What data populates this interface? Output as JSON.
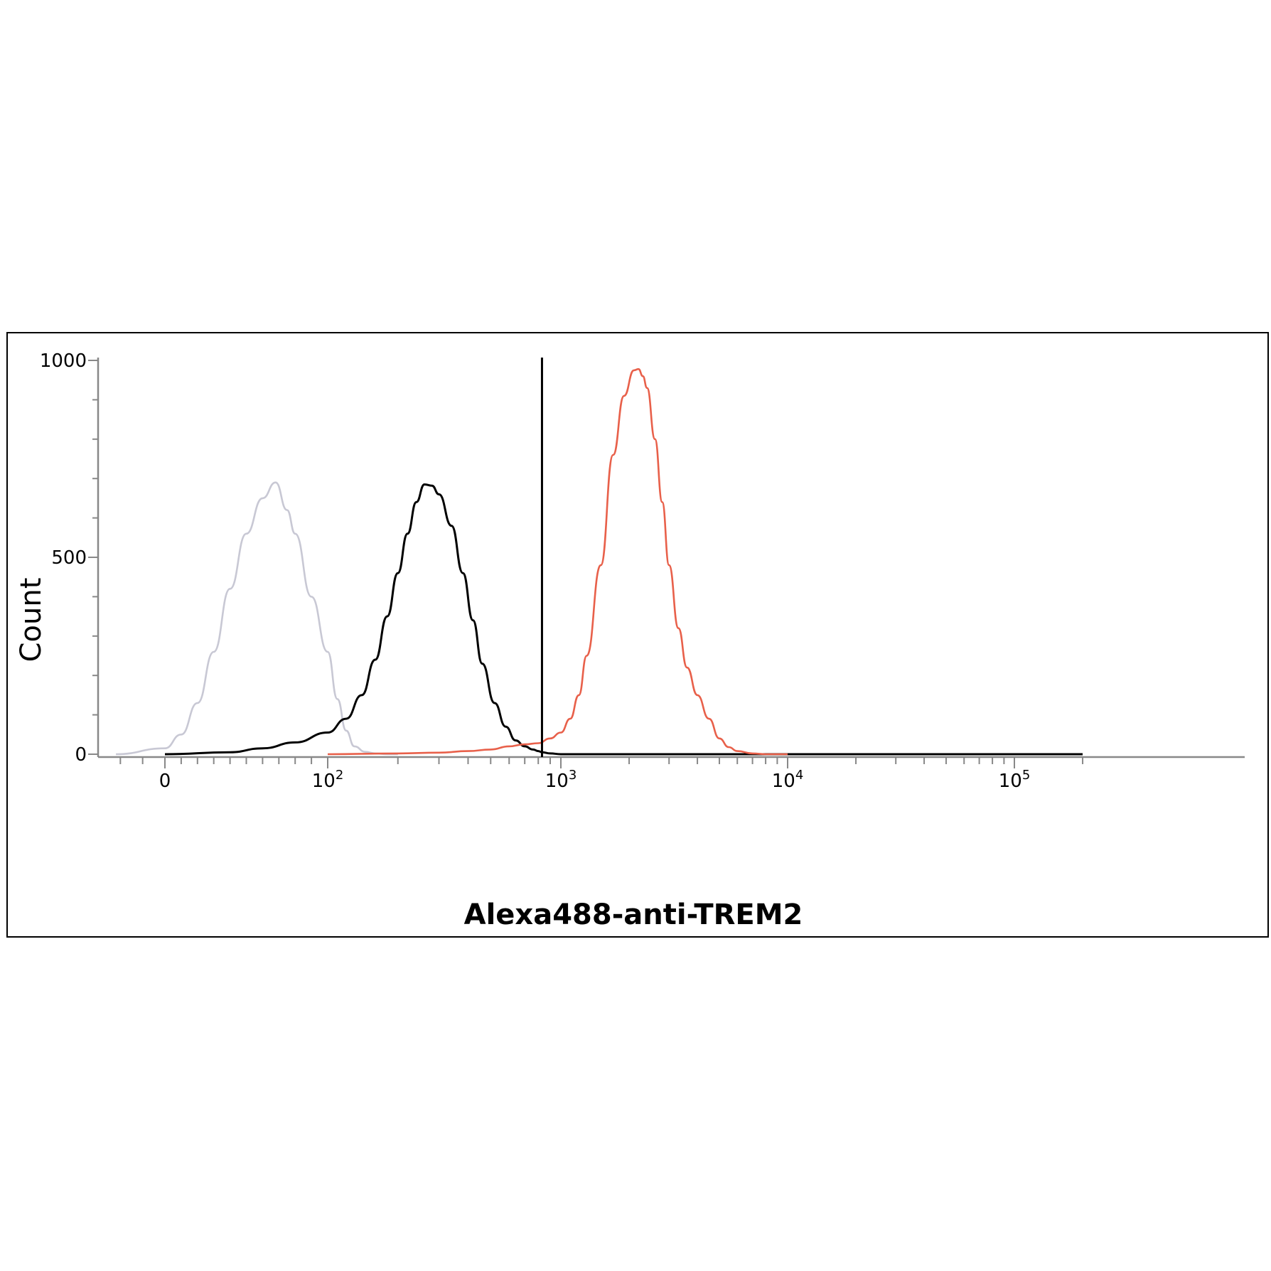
{
  "chart_data": {
    "type": "line",
    "title": "",
    "xlabel": "Alexa488-anti-TREM2",
    "ylabel": "Count",
    "x_scale": "biexponential",
    "xlim": [
      -30,
      200000
    ],
    "ylim": [
      0,
      1000
    ],
    "x_tick_labels": [
      {
        "value": 0,
        "label": "0"
      },
      {
        "value": 100,
        "base": "10",
        "exp": "2"
      },
      {
        "value": 1000,
        "base": "10",
        "exp": "3"
      },
      {
        "value": 10000,
        "base": "10",
        "exp": "4"
      },
      {
        "value": 100000,
        "base": "10",
        "exp": "5"
      }
    ],
    "y_ticks": [
      0,
      500,
      1000
    ],
    "grid": false,
    "legend": "none",
    "gate_line_x": 830,
    "series": [
      {
        "color": "#c8c8d4",
        "x": [
          -22,
          0,
          10,
          20,
          30,
          40,
          50,
          60,
          68,
          75,
          80,
          90,
          100,
          110,
          120,
          130,
          145,
          160,
          180,
          200
        ],
        "values": [
          0,
          15,
          50,
          130,
          260,
          420,
          560,
          650,
          690,
          620,
          560,
          400,
          260,
          140,
          60,
          20,
          6,
          2,
          0,
          0
        ]
      },
      {
        "color": "#000000",
        "x": [
          0,
          40,
          60,
          80,
          100,
          120,
          140,
          160,
          180,
          200,
          220,
          240,
          260,
          280,
          300,
          340,
          380,
          420,
          460,
          520,
          580,
          640,
          700,
          760,
          800,
          830,
          900,
          1000,
          2000,
          200000
        ],
        "values": [
          0,
          5,
          15,
          30,
          55,
          90,
          150,
          240,
          350,
          460,
          560,
          640,
          685,
          682,
          660,
          580,
          460,
          340,
          230,
          130,
          70,
          35,
          20,
          12,
          8,
          5,
          2,
          0,
          0,
          0
        ]
      },
      {
        "color": "#e8604a",
        "x": [
          100,
          200,
          300,
          400,
          500,
          600,
          700,
          800,
          900,
          1000,
          1100,
          1200,
          1300,
          1500,
          1700,
          1900,
          2100,
          2200,
          2300,
          2400,
          2600,
          2800,
          3000,
          3300,
          3600,
          4000,
          4500,
          5000,
          5500,
          6000,
          7000,
          8000,
          9000,
          10000
        ],
        "values": [
          0,
          2,
          4,
          8,
          12,
          20,
          25,
          28,
          40,
          55,
          90,
          150,
          250,
          480,
          760,
          910,
          975,
          978,
          960,
          930,
          800,
          640,
          480,
          320,
          220,
          150,
          90,
          40,
          18,
          8,
          2,
          0,
          0,
          0
        ]
      }
    ]
  }
}
